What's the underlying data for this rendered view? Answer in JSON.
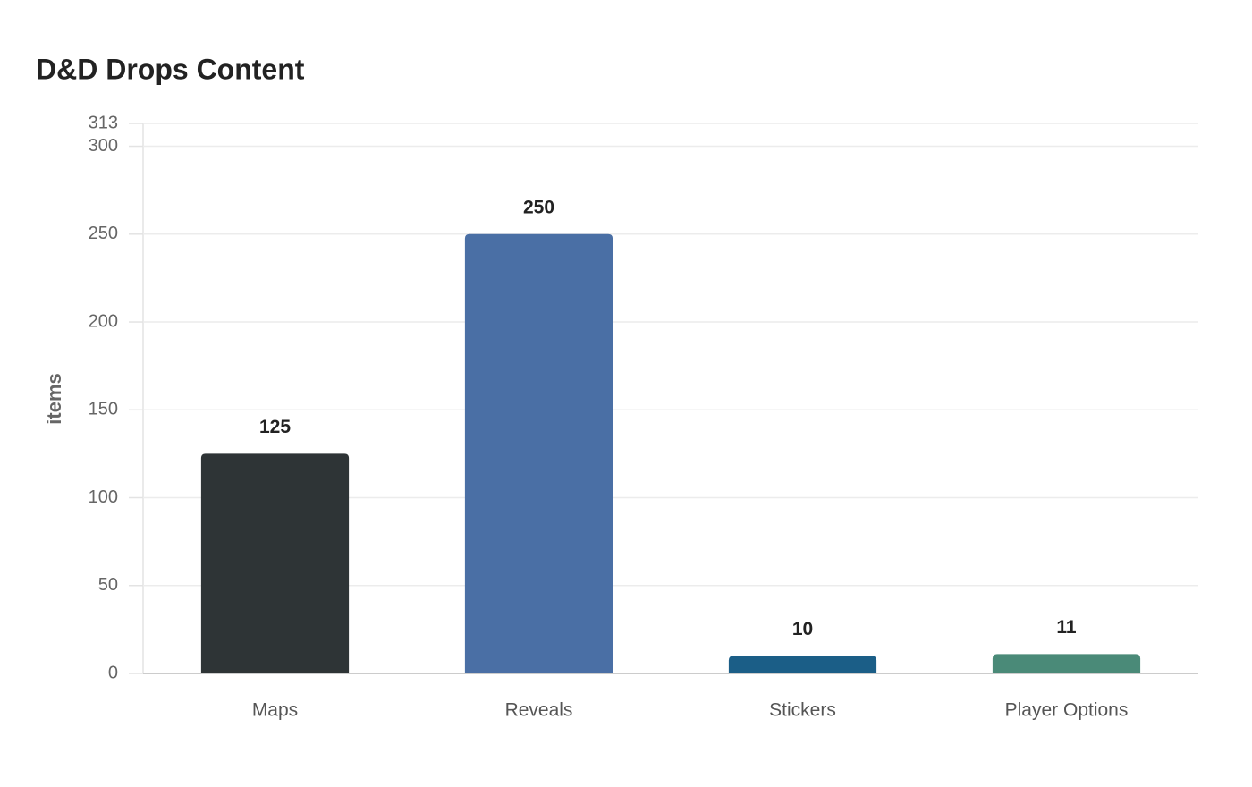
{
  "chart_data": {
    "type": "bar",
    "title": "D&D Drops Content",
    "y_label": "items",
    "categories": [
      "Maps",
      "Reveals",
      "Stickers",
      "Player Options"
    ],
    "values": [
      125,
      250,
      10,
      11
    ],
    "colors": [
      "#2e3436",
      "#4a6fa5",
      "#1b5e87",
      "#4a8a78"
    ],
    "ylim": [
      0,
      313
    ],
    "yticks": [
      0,
      50,
      100,
      150,
      200,
      250,
      300,
      313
    ],
    "grid": true
  }
}
